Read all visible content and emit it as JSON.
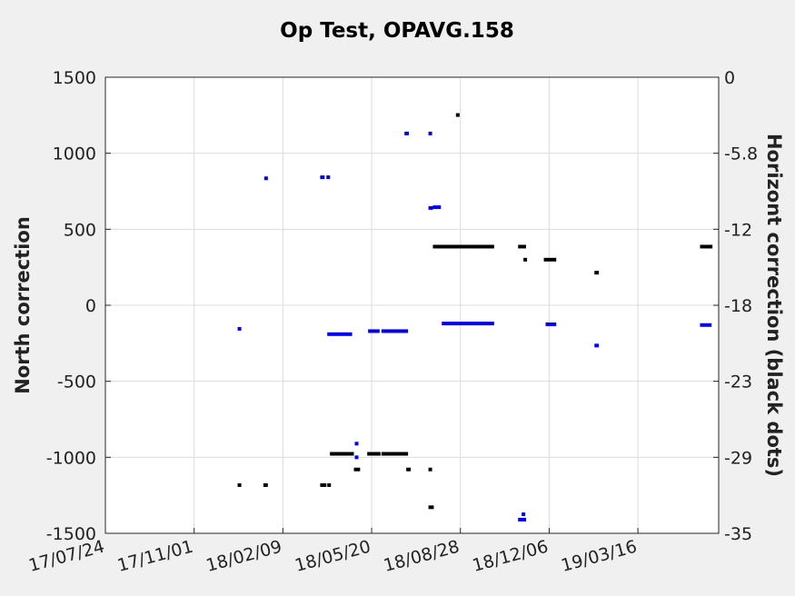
{
  "chart_data": {
    "type": "scatter",
    "title": "Op Test, OPAVG.158",
    "ylabel_left": "North correction",
    "ylabel_right": "Horizont correction (black dots)",
    "x_tick_labels": [
      "17/07/24",
      "17/11/01",
      "18/02/09",
      "18/05/20",
      "18/08/28",
      "18/12/06",
      "19/03/16"
    ],
    "xlim": [
      "2017-07-24",
      "2019-06-15"
    ],
    "ylim_left": [
      -1500,
      1500
    ],
    "y_ticks_left": [
      "1500",
      "1000",
      "500",
      "0",
      "-500",
      "-1000",
      "-1500"
    ],
    "ylim_right": [
      -35,
      0
    ],
    "y_ticks_right": [
      "0",
      "-5.8",
      "-12",
      "-18",
      "-23",
      "-29",
      "-35"
    ],
    "grid": true,
    "colors": {
      "north": "#0000ee",
      "horizont": "#000000",
      "background": "#f0f0f0",
      "plot": "#ffffff"
    },
    "series": [
      {
        "axis": "left",
        "color": "#0000ee",
        "segments": [
          {
            "x": [
              "2017-12-20",
              "2017-12-21"
            ],
            "y": -155
          },
          {
            "x": [
              "2018-01-19",
              "2018-01-21"
            ],
            "y": 835
          },
          {
            "x": [
              "2018-03-23",
              "2018-03-28"
            ],
            "y": 842
          },
          {
            "x": [
              "2018-03-30",
              "2018-04-02"
            ],
            "y": 842
          },
          {
            "x": [
              "2018-03-31",
              "2018-04-28"
            ],
            "y": -190
          },
          {
            "x": [
              "2018-05-01",
              "2018-05-02"
            ],
            "y": -910
          },
          {
            "x": [
              "2018-05-01",
              "2018-05-05"
            ],
            "y": -1000
          },
          {
            "x": [
              "2018-05-16",
              "2018-05-29"
            ],
            "y": -170
          },
          {
            "x": [
              "2018-05-31",
              "2018-06-30"
            ],
            "y": -170
          },
          {
            "x": [
              "2018-06-26",
              "2018-07-01"
            ],
            "y": 1130
          },
          {
            "x": [
              "2018-07-23",
              "2018-07-25"
            ],
            "y": 1130
          },
          {
            "x": [
              "2018-07-23",
              "2018-07-28"
            ],
            "y": 640
          },
          {
            "x": [
              "2018-07-28",
              "2018-08-06"
            ],
            "y": 645
          },
          {
            "x": [
              "2018-08-07",
              "2018-10-05"
            ],
            "y": -120
          },
          {
            "x": [
              "2018-11-01",
              "2018-11-10"
            ],
            "y": -1410
          },
          {
            "x": [
              "2018-11-05",
              "2018-11-07"
            ],
            "y": -1375
          },
          {
            "x": [
              "2018-12-02",
              "2018-12-14"
            ],
            "y": -125
          },
          {
            "x": [
              "2019-01-26",
              "2019-01-31"
            ],
            "y": -265
          },
          {
            "x": [
              "2019-05-25",
              "2019-06-07"
            ],
            "y": -130
          }
        ]
      },
      {
        "axis": "right",
        "color": "#000000",
        "segments": [
          {
            "x": [
              "2017-12-20",
              "2017-12-22"
            ],
            "y": -31.3
          },
          {
            "x": [
              "2018-01-18",
              "2018-01-23"
            ],
            "y": -31.3
          },
          {
            "x": [
              "2018-03-23",
              "2018-03-30"
            ],
            "y": -31.3
          },
          {
            "x": [
              "2018-03-31",
              "2018-04-03"
            ],
            "y": -31.3
          },
          {
            "x": [
              "2018-04-03",
              "2018-04-30"
            ],
            "y": -28.9
          },
          {
            "x": [
              "2018-04-30",
              "2018-05-07"
            ],
            "y": -30.1
          },
          {
            "x": [
              "2018-05-15",
              "2018-05-30"
            ],
            "y": -28.9
          },
          {
            "x": [
              "2018-05-31",
              "2018-06-30"
            ],
            "y": -28.9
          },
          {
            "x": [
              "2018-06-28",
              "2018-07-03"
            ],
            "y": -30.1
          },
          {
            "x": [
              "2018-07-23",
              "2018-07-25"
            ],
            "y": -30.1
          },
          {
            "x": [
              "2018-07-23",
              "2018-07-29"
            ],
            "y": -33.0
          },
          {
            "x": [
              "2018-07-28",
              "2018-10-05"
            ],
            "y": -13.0
          },
          {
            "x": [
              "2018-08-23",
              "2018-08-25"
            ],
            "y": -2.9
          },
          {
            "x": [
              "2018-11-01",
              "2018-11-10"
            ],
            "y": -13.0
          },
          {
            "x": [
              "2018-11-07",
              "2018-11-09"
            ],
            "y": -14.0
          },
          {
            "x": [
              "2018-11-30",
              "2018-12-14"
            ],
            "y": -14.0
          },
          {
            "x": [
              "2019-01-26",
              "2019-01-31"
            ],
            "y": -15.0
          },
          {
            "x": [
              "2019-05-25",
              "2019-06-08"
            ],
            "y": -13.0
          }
        ]
      }
    ]
  }
}
